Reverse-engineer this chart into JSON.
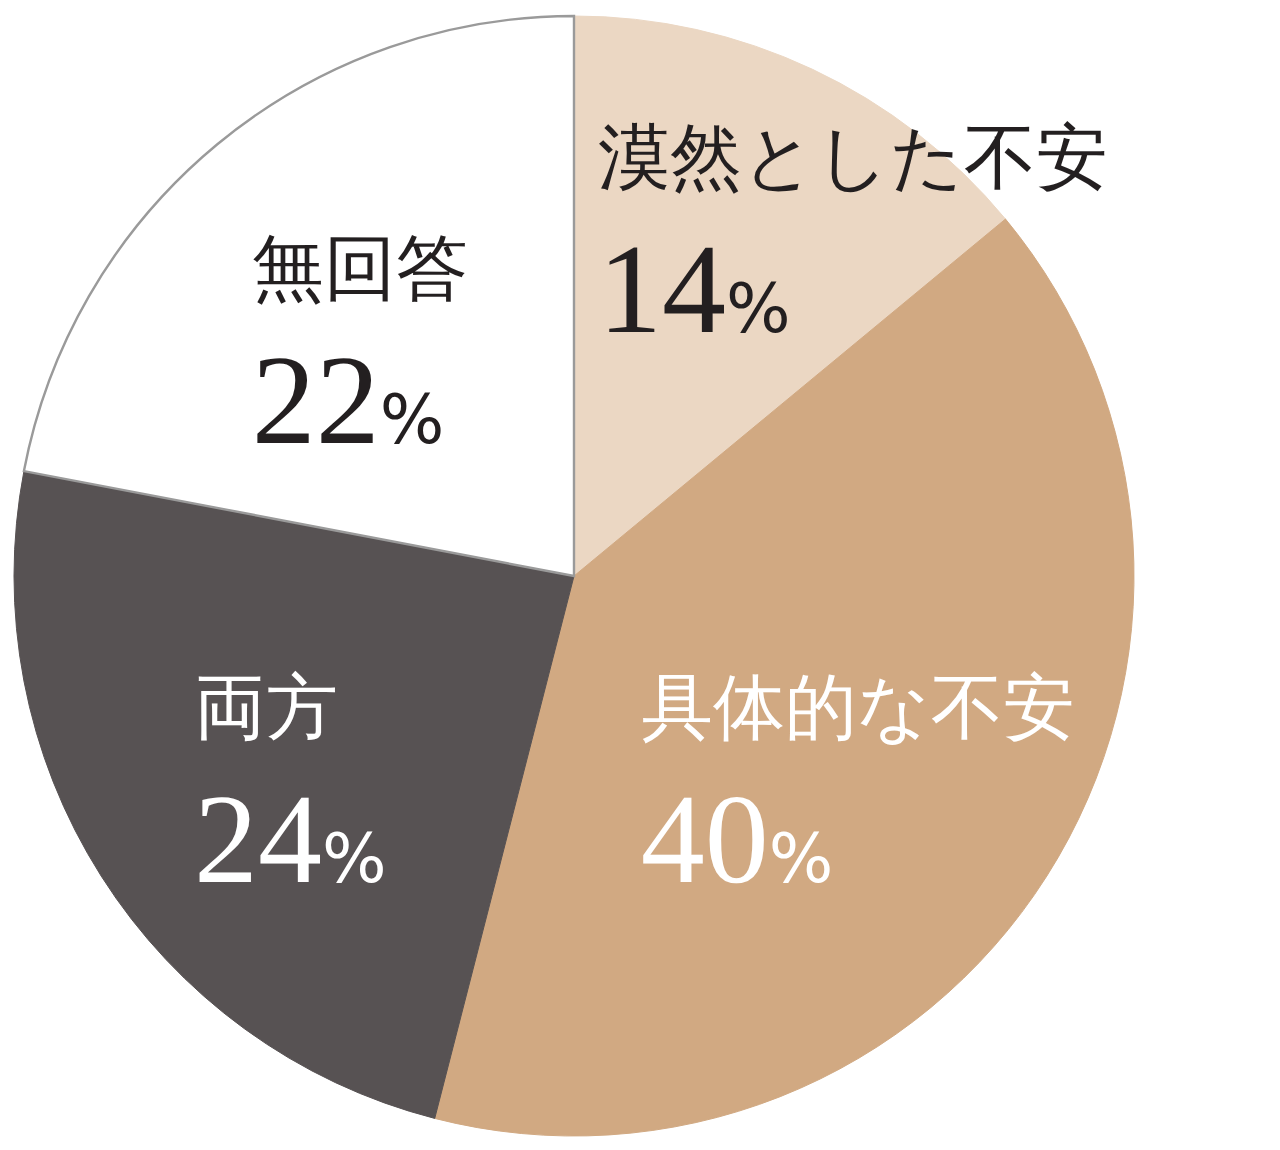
{
  "chart_data": {
    "type": "pie",
    "categories": [
      "漠然とした不安",
      "具体的な不安",
      "両方",
      "無回答"
    ],
    "values": [
      14,
      40,
      24,
      22
    ],
    "value_labels": [
      "14%",
      "40%",
      "24%",
      "22%"
    ],
    "colors": [
      "#ebd7c3",
      "#d1a982",
      "#575253",
      "#ffffff"
    ]
  }
}
